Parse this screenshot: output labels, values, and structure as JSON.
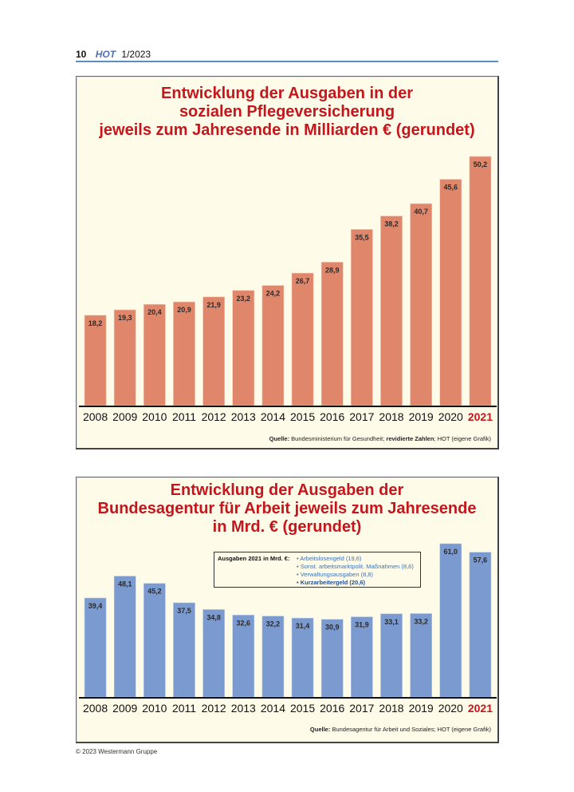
{
  "page_header": {
    "page_number": "10",
    "brand": "HOT",
    "issue": "1/2023"
  },
  "footer": {
    "copyright": "© 2023 Westermann Gruppe"
  },
  "colors": {
    "title_red": "#c4161c",
    "bar_orange": "#e0876b",
    "bar_blue": "#7b9bd0",
    "background": "#fefbe9",
    "highlight_year": "#c4161c"
  },
  "chart_data": [
    {
      "type": "bar",
      "title_lines": [
        "Entwicklung der Ausgaben in der",
        "sozialen Pflegeversicherung",
        "jeweils zum Jahresende in Milliarden € (gerundet)"
      ],
      "title": "Entwicklung der Ausgaben in der sozialen Pflegeversicherung jeweils zum Jahresende in Milliarden € (gerundet)",
      "categories": [
        "2008",
        "2009",
        "2010",
        "2011",
        "2012",
        "2013",
        "2014",
        "2015",
        "2016",
        "2017",
        "2018",
        "2019",
        "2020",
        "2021"
      ],
      "values": [
        18.2,
        19.3,
        20.4,
        20.9,
        21.9,
        23.2,
        24.2,
        26.7,
        28.9,
        35.5,
        38.2,
        40.7,
        45.6,
        50.2
      ],
      "labels": [
        "18,2",
        "19,3",
        "20,4",
        "20,9",
        "21,9",
        "23,2",
        "24,2",
        "26,7",
        "28,9",
        "35,5",
        "38,2",
        "40,7",
        "45,6",
        "50,2"
      ],
      "highlight_category": "2021",
      "xlabel": "",
      "ylabel": "Milliarden €",
      "ylim": [
        0,
        50.2
      ],
      "grid": false,
      "source_label": "Quelle:",
      "source_parts": [
        "Bundesministerium für Gesundheit;",
        "revidierte Zahlen",
        "; HOT (eigene Grafik)"
      ]
    },
    {
      "type": "bar",
      "title_lines": [
        "Entwicklung der Ausgaben der",
        "Bundesagentur für Arbeit jeweils zum Jahresende",
        "in Mrd. € (gerundet)"
      ],
      "title": "Entwicklung der Ausgaben der Bundesagentur für Arbeit jeweils zum Jahresende in Mrd. € (gerundet)",
      "categories": [
        "2008",
        "2009",
        "2010",
        "2011",
        "2012",
        "2013",
        "2014",
        "2015",
        "2016",
        "2017",
        "2018",
        "2019",
        "2020",
        "2021"
      ],
      "values": [
        39.4,
        48.1,
        45.2,
        37.5,
        34.8,
        32.6,
        32.2,
        31.4,
        30.9,
        31.9,
        33.1,
        33.2,
        61.0,
        57.6
      ],
      "labels": [
        "39,4",
        "48,1",
        "45,2",
        "37,5",
        "34,8",
        "32,6",
        "32,2",
        "31,4",
        "30,9",
        "31,9",
        "33,1",
        "33,2",
        "61,0",
        "57,6"
      ],
      "highlight_category": "2021",
      "xlabel": "",
      "ylabel": "Mrd. €",
      "ylim": [
        0,
        61.0
      ],
      "grid": false,
      "annotation": {
        "label": "Ausgaben 2021 in Mrd. €:",
        "items": [
          {
            "text": "• Arbeitslosengeld (19,6)",
            "bold": false
          },
          {
            "text": "• Sonst. arbeitsmarktpolit. Maßnahmen (8,6)",
            "bold": false
          },
          {
            "text": "• Verwaltungsausgaben (8,8)",
            "bold": false
          },
          {
            "text": "• Kurzarbeitergeld (20,6)",
            "bold": true
          }
        ]
      },
      "source_label": "Quelle:",
      "source_parts": [
        "Bundesagentur für Arbeit und Soziales; HOT (eigene Grafik)"
      ]
    }
  ]
}
